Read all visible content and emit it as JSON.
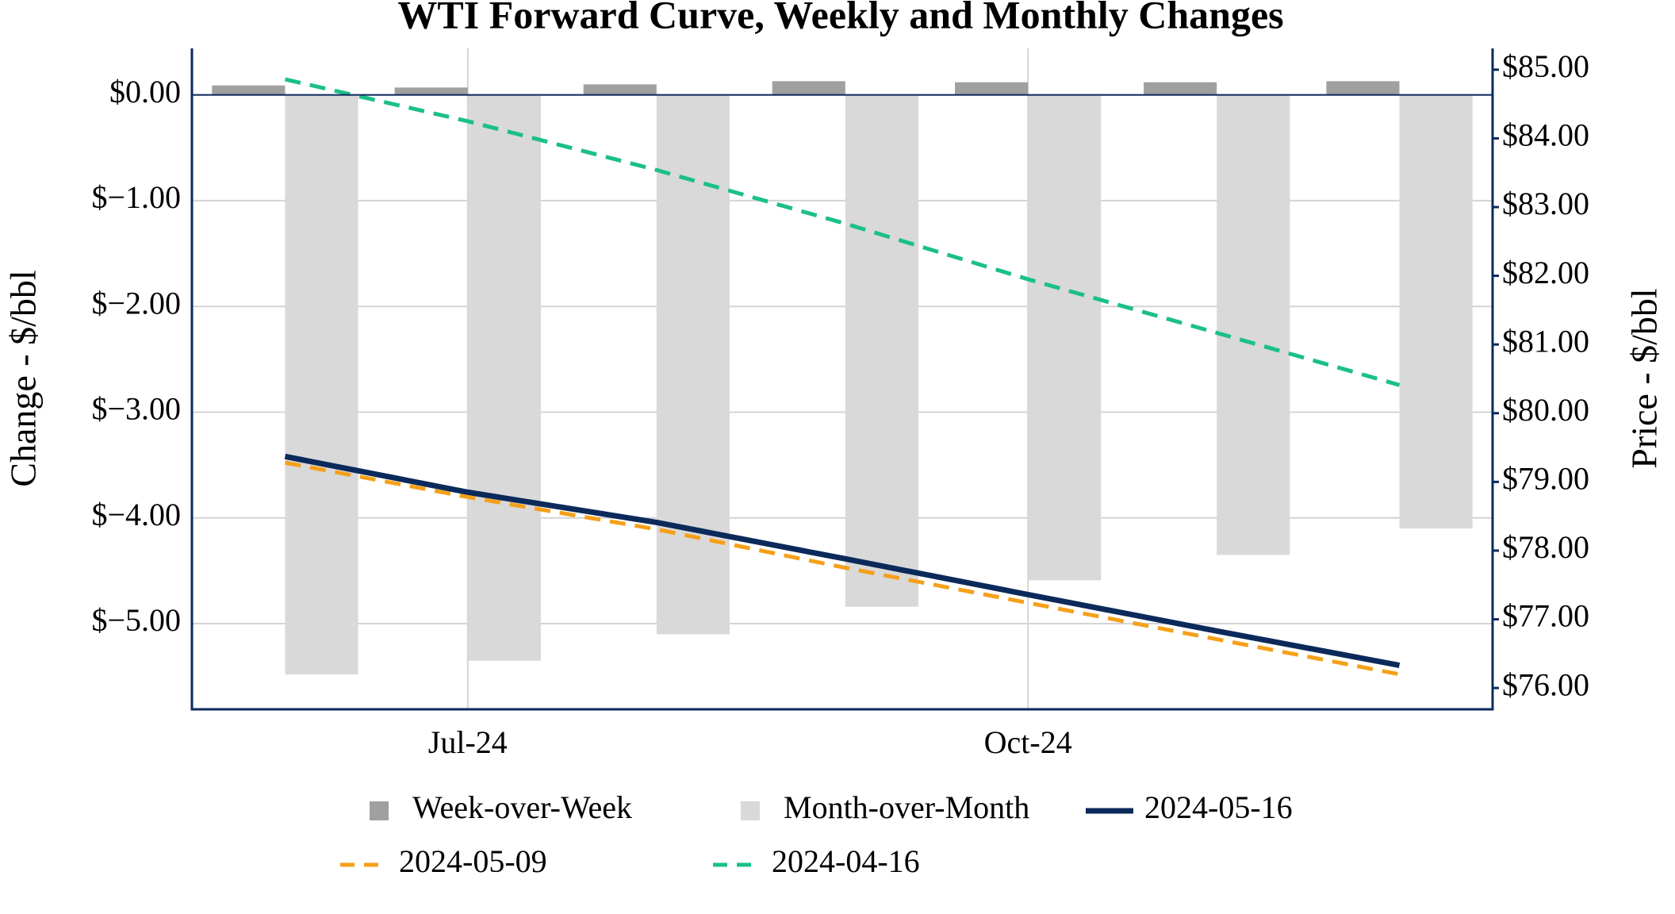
{
  "chart_data": {
    "type": "bar-line",
    "title": "WTI Forward Curve, Weekly and Monthly Changes",
    "y_label": "Change - $/bbl",
    "y2_label": "Price - $/bbl",
    "x": [
      "2024-06",
      "2024-07",
      "2024-08",
      "2024-09",
      "2024-10",
      "2024-11",
      "2024-12"
    ],
    "xticks": [
      {
        "value": "2024-07",
        "label": "Jul-24"
      },
      {
        "value": "2024-10",
        "label": "Oct-24"
      }
    ],
    "ylim": [
      -5.81,
      0.44
    ],
    "yticks": [
      {
        "value": 0,
        "label": "$0.00"
      },
      {
        "value": -1,
        "label": "$−1.00"
      },
      {
        "value": -2,
        "label": "$−2.00"
      },
      {
        "value": -3,
        "label": "$−3.00"
      },
      {
        "value": -4,
        "label": "$−4.00"
      },
      {
        "value": -5,
        "label": "$−5.00"
      }
    ],
    "y2lim": [
      75.69,
      85.31
    ],
    "y2ticks": [
      {
        "value": 76,
        "label": "$76.00"
      },
      {
        "value": 77,
        "label": "$77.00"
      },
      {
        "value": 78,
        "label": "$78.00"
      },
      {
        "value": 79,
        "label": "$79.00"
      },
      {
        "value": 80,
        "label": "$80.00"
      },
      {
        "value": 81,
        "label": "$81.00"
      },
      {
        "value": 82,
        "label": "$82.00"
      },
      {
        "value": 83,
        "label": "$83.00"
      },
      {
        "value": 84,
        "label": "$84.00"
      },
      {
        "value": 85,
        "label": "$85.00"
      }
    ],
    "grid": true,
    "series": [
      {
        "name": "Week-over-Week",
        "type": "bar",
        "color": "#a0a0a0",
        "values": [
          0.09,
          0.07,
          0.1,
          0.13,
          0.12,
          0.12,
          0.13
        ]
      },
      {
        "name": "Month-over-Month",
        "type": "bar",
        "color": "#d9d9d9",
        "values": [
          -5.48,
          -5.35,
          -5.1,
          -4.84,
          -4.59,
          -4.35,
          -4.1
        ]
      },
      {
        "name": "2024-05-16",
        "type": "line",
        "axis": "y2",
        "color": "#0b2a5b",
        "dashed": false,
        "values": [
          79.37,
          78.85,
          78.41,
          77.88,
          77.36,
          76.83,
          76.33
        ]
      },
      {
        "name": "2024-05-09",
        "type": "line",
        "axis": "y2",
        "color": "#f5a01a",
        "dashed": true,
        "values": [
          79.28,
          78.78,
          78.31,
          77.75,
          77.24,
          76.71,
          76.2
        ]
      },
      {
        "name": "2024-04-16",
        "type": "line",
        "axis": "y2",
        "color": "#1bbf8a",
        "dashed": true,
        "values": [
          84.86,
          84.25,
          83.54,
          82.76,
          81.95,
          81.17,
          80.41
        ]
      }
    ]
  }
}
